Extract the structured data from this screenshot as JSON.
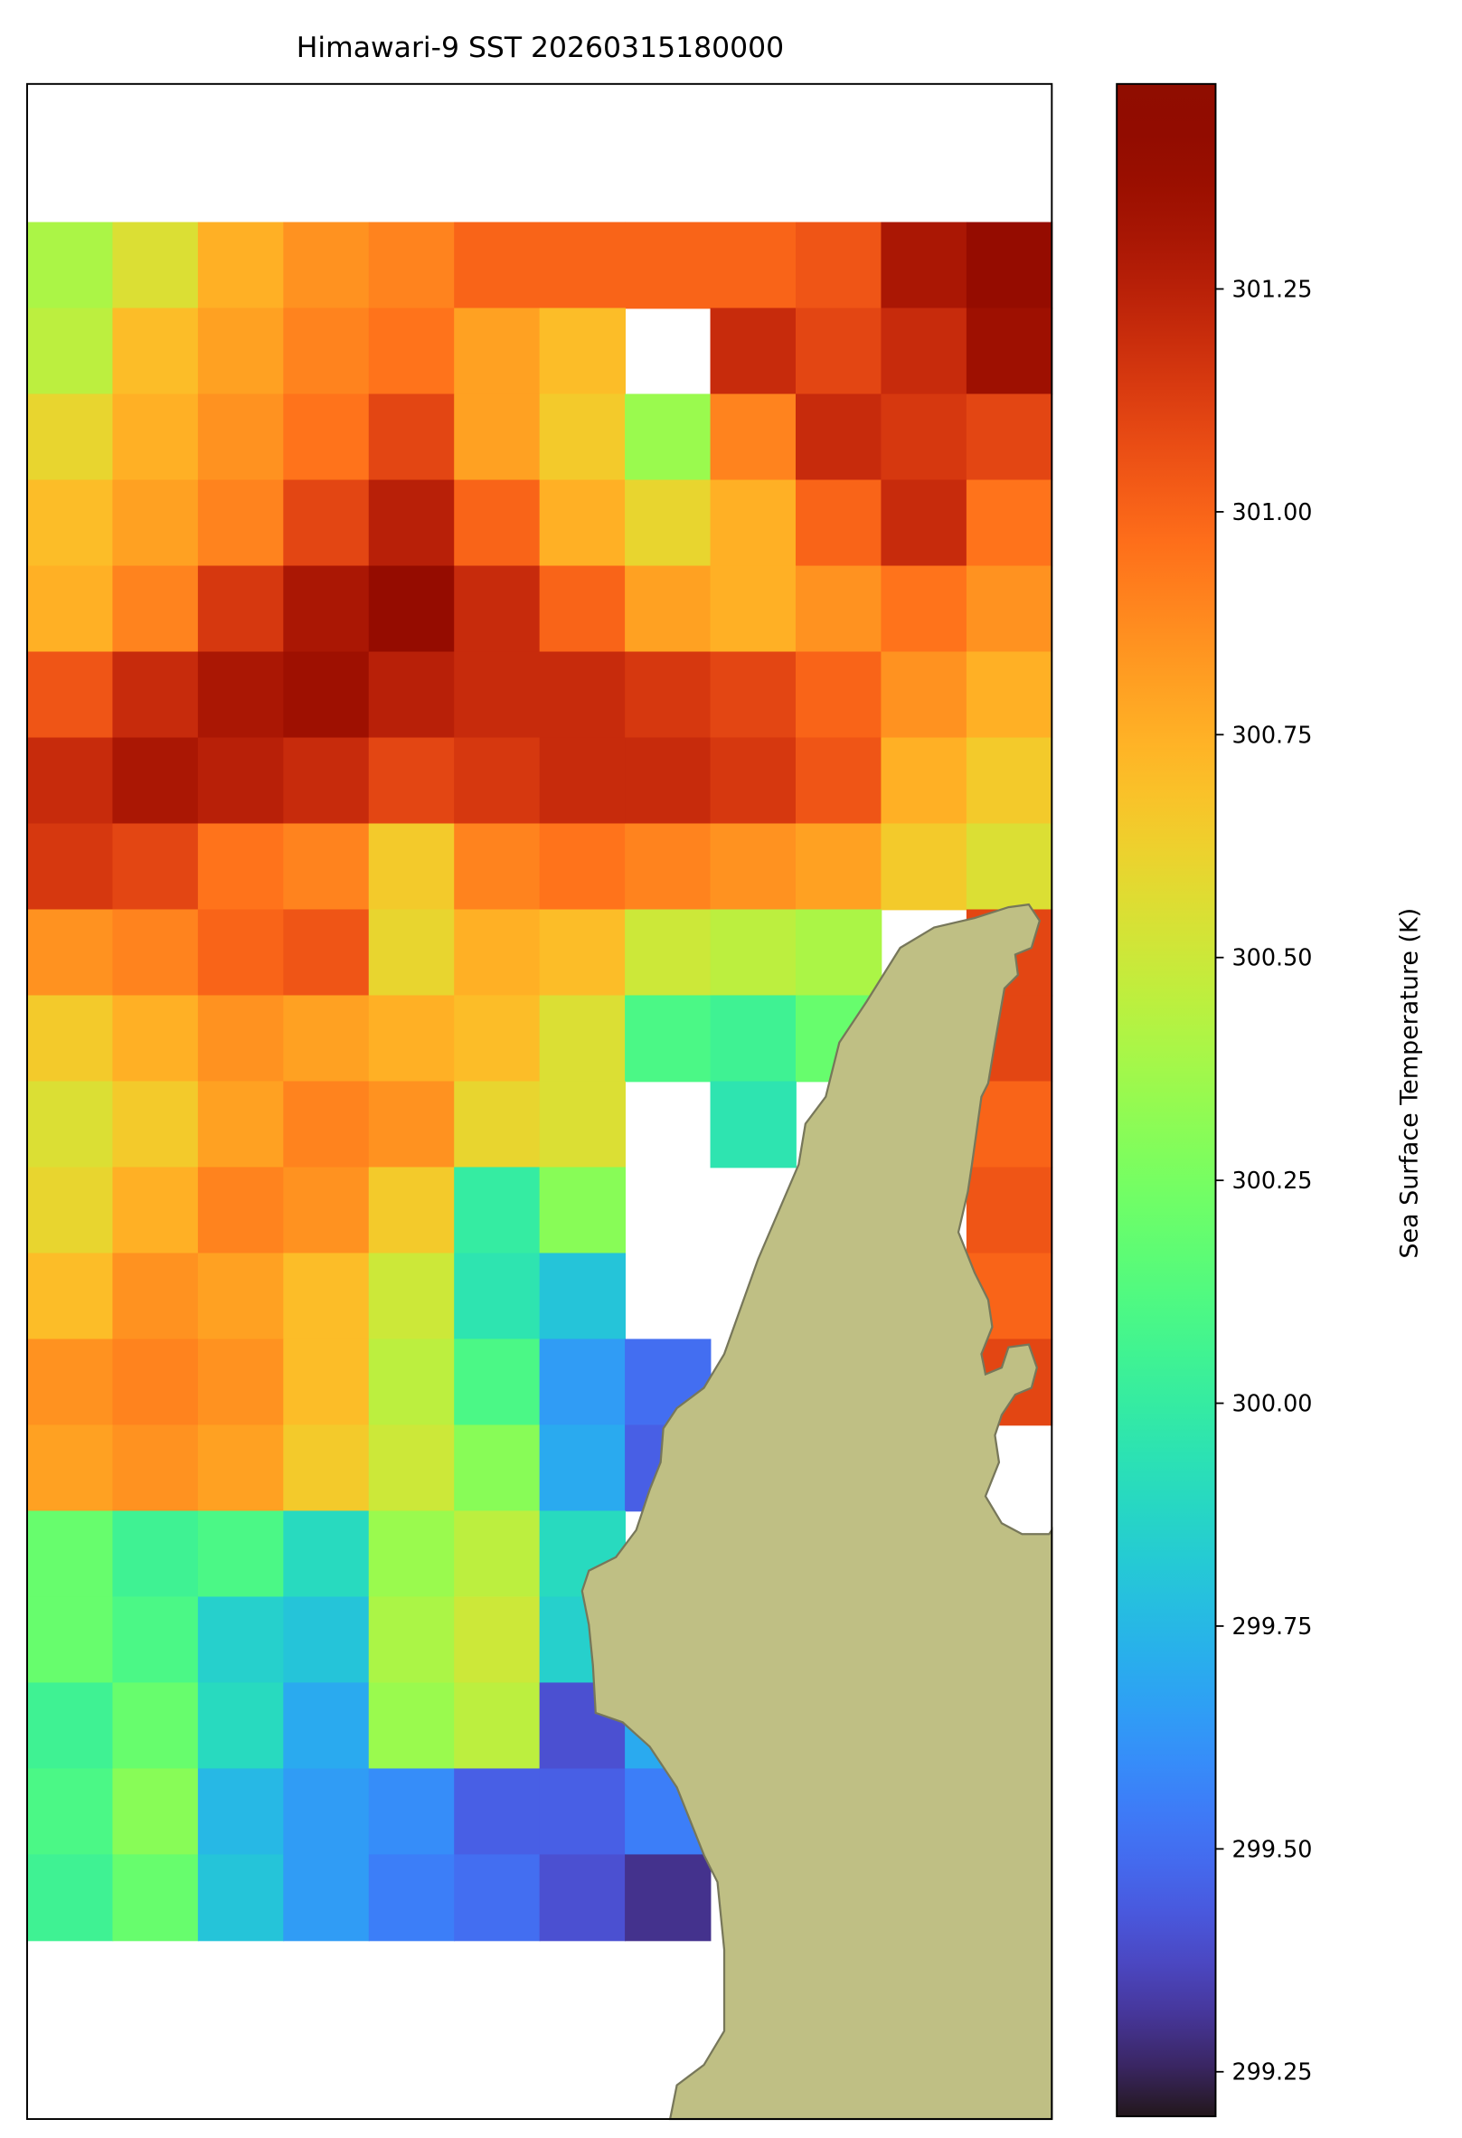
{
  "chart_data": {
    "type": "heatmap",
    "title": "Himawari-9 SST 20260315180000",
    "colorbar_label": "Sea Surface Temperature (K)",
    "colormap": "turbo",
    "clim": [
      299.2,
      301.48
    ],
    "cticks": [
      299.25,
      {
        "value": 299.5,
        "label": "299.50"
      },
      299.75,
      {
        "value": 300,
        "label": "300.00"
      },
      300.25,
      {
        "value": 300.5,
        "label": "300.50"
      },
      300.75,
      {
        "value": 301,
        "label": "301.00"
      },
      301.25
    ],
    "grid": [
      [
        300.4,
        300.55,
        300.75,
        300.85,
        300.9,
        301.0,
        301.0,
        301.0,
        301.0,
        301.05,
        301.3,
        301.4
      ],
      [
        300.45,
        300.7,
        300.8,
        300.9,
        300.95,
        300.8,
        300.7,
        null,
        301.2,
        301.1,
        301.2,
        301.35
      ],
      [
        300.6,
        300.75,
        300.85,
        300.95,
        301.1,
        300.8,
        300.65,
        300.35,
        300.9,
        301.2,
        301.15,
        301.1
      ],
      [
        300.7,
        300.8,
        300.9,
        301.1,
        301.25,
        301.0,
        300.75,
        300.6,
        300.75,
        301.0,
        301.2,
        300.95
      ],
      [
        300.75,
        300.9,
        301.15,
        301.3,
        301.4,
        301.2,
        301.0,
        300.8,
        300.75,
        300.85,
        300.95,
        300.85
      ],
      [
        301.05,
        301.2,
        301.3,
        301.35,
        301.25,
        301.2,
        301.2,
        301.15,
        301.1,
        301.0,
        300.85,
        300.75
      ],
      [
        301.2,
        301.3,
        301.25,
        301.2,
        301.1,
        301.15,
        301.2,
        301.2,
        301.15,
        301.05,
        300.75,
        300.65
      ],
      [
        301.15,
        301.1,
        300.95,
        300.9,
        300.65,
        300.9,
        300.95,
        300.9,
        300.85,
        300.8,
        300.65,
        300.55
      ],
      [
        300.85,
        300.9,
        301.0,
        301.05,
        300.6,
        300.75,
        300.7,
        300.5,
        300.45,
        300.4,
        null,
        301.1
      ],
      [
        300.65,
        300.75,
        300.85,
        300.8,
        300.75,
        300.7,
        300.55,
        300.1,
        300.05,
        300.2,
        null,
        301.1
      ],
      [
        300.55,
        300.65,
        300.8,
        300.9,
        300.85,
        300.6,
        300.55,
        null,
        299.95,
        null,
        null,
        301.0
      ],
      [
        300.6,
        300.75,
        300.9,
        300.85,
        300.65,
        300.0,
        300.3,
        null,
        null,
        null,
        null,
        301.05
      ],
      [
        300.7,
        300.85,
        300.8,
        300.7,
        300.5,
        299.95,
        299.8,
        null,
        null,
        null,
        null,
        301.0
      ],
      [
        300.85,
        300.9,
        300.85,
        300.7,
        300.45,
        300.1,
        299.65,
        299.5,
        null,
        null,
        null,
        301.1
      ],
      [
        300.8,
        300.85,
        300.8,
        300.65,
        300.5,
        300.3,
        299.7,
        299.45,
        null,
        null,
        null,
        null
      ],
      [
        300.2,
        300.05,
        300.1,
        299.9,
        300.35,
        300.45,
        299.9,
        null,
        null,
        null,
        null,
        null
      ],
      [
        300.2,
        300.1,
        299.85,
        299.8,
        300.4,
        300.5,
        299.85,
        null,
        null,
        null,
        null,
        null
      ],
      [
        300.05,
        300.2,
        299.9,
        299.7,
        300.35,
        300.45,
        299.4,
        299.7,
        null,
        null,
        null,
        null
      ],
      [
        300.1,
        300.3,
        299.75,
        299.65,
        299.6,
        299.45,
        299.45,
        299.55,
        null,
        null,
        null,
        null
      ],
      [
        300.05,
        300.2,
        299.8,
        299.65,
        299.55,
        299.5,
        299.4,
        299.3,
        null,
        null,
        null,
        null
      ]
    ]
  }
}
